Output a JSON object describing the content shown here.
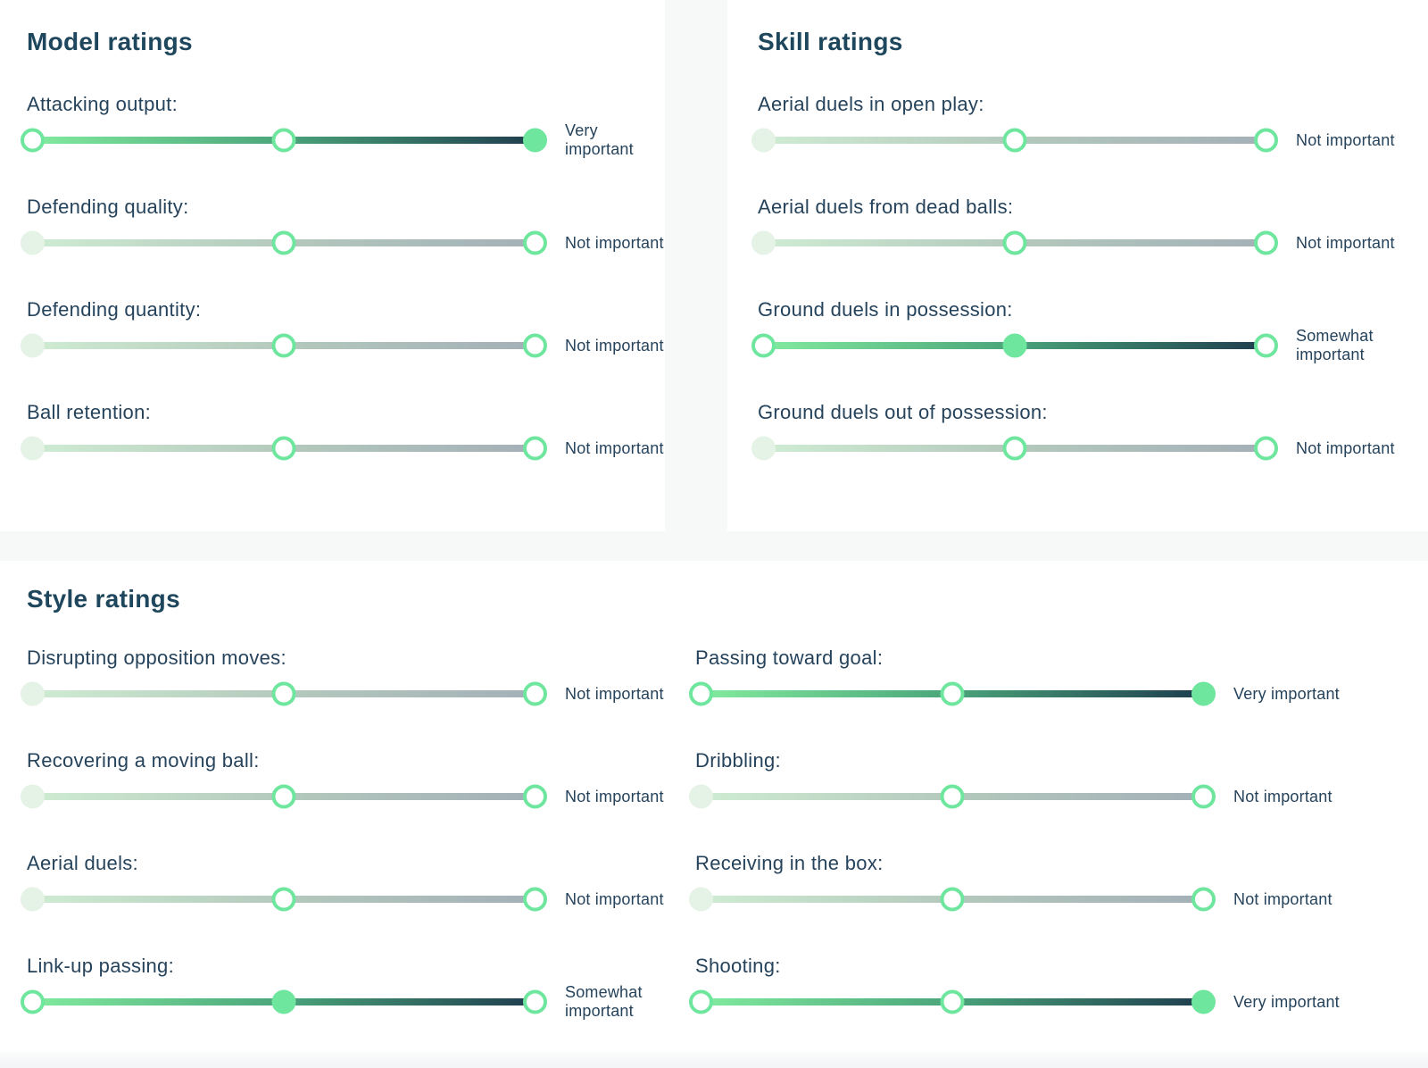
{
  "colors": {
    "page_background": "#f7f8f8",
    "card_background": "#ffffff",
    "heading_text": "#1e465c",
    "label_text": "#26435c",
    "accent_green": "#6fe69e",
    "active_track_start": "#84ed9f",
    "active_track_end": "#1d3a4d",
    "muted_track_start": "#cfedd3",
    "muted_track_end": "#a3afb7",
    "muted_handle_fill": "#e5f2e6"
  },
  "model": {
    "title": "Model ratings",
    "sliders": [
      {
        "label": "Attacking output:",
        "state": "very",
        "importance": "Very important"
      },
      {
        "label": "Defending quality:",
        "state": "not",
        "importance": "Not important"
      },
      {
        "label": "Defending quantity:",
        "state": "not",
        "importance": "Not important"
      },
      {
        "label": "Ball retention:",
        "state": "not",
        "importance": "Not important"
      }
    ]
  },
  "skill": {
    "title": "Skill ratings",
    "sliders": [
      {
        "label": "Aerial duels in open play:",
        "state": "not",
        "importance": "Not important"
      },
      {
        "label": "Aerial duels from dead balls:",
        "state": "not",
        "importance": "Not important"
      },
      {
        "label": "Ground duels in possession:",
        "state": "somewhat",
        "importance": "Somewhat important"
      },
      {
        "label": "Ground duels out of possession:",
        "state": "not",
        "importance": "Not important"
      }
    ]
  },
  "style": {
    "title": "Style ratings",
    "left": [
      {
        "label": "Disrupting opposition moves:",
        "state": "not",
        "importance": "Not important"
      },
      {
        "label": "Recovering a moving ball:",
        "state": "not",
        "importance": "Not important"
      },
      {
        "label": "Aerial duels:",
        "state": "not",
        "importance": "Not important"
      },
      {
        "label": "Link-up passing:",
        "state": "somewhat",
        "importance": "Somewhat important"
      }
    ],
    "right": [
      {
        "label": "Passing toward goal:",
        "state": "very",
        "importance": "Very important"
      },
      {
        "label": "Dribbling:",
        "state": "not",
        "importance": "Not important"
      },
      {
        "label": "Receiving in the box:",
        "state": "not",
        "importance": "Not important"
      },
      {
        "label": "Shooting:",
        "state": "very",
        "importance": "Very important"
      }
    ]
  }
}
